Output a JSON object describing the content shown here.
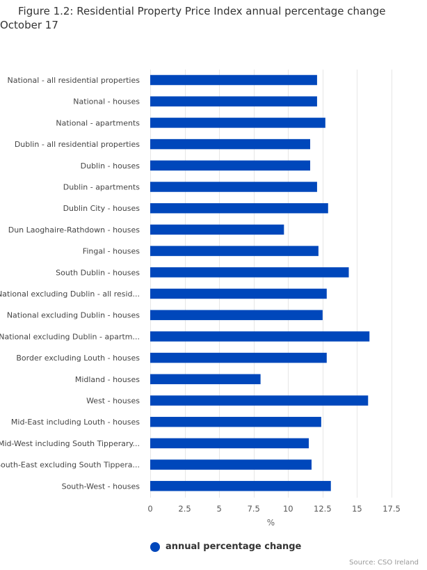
{
  "chart_data": {
    "type": "bar",
    "orientation": "horizontal",
    "title": "Figure 1.2: Residential Property Price Index annual percentage change October 17",
    "xlabel": "%",
    "ylabel": "",
    "xlim": [
      0,
      17.5
    ],
    "ticks": [
      0,
      2.5,
      5,
      7.5,
      10,
      12.5,
      15,
      17.5
    ],
    "tick_labels": [
      "0",
      "2.5",
      "5",
      "7.5",
      "10",
      "12.5",
      "15",
      "17.5"
    ],
    "grid": true,
    "legend_position": "bottom",
    "categories": [
      "National - all residential properties",
      "National - houses",
      "National - apartments",
      "Dublin - all residential properties",
      "Dublin - houses",
      "Dublin - apartments",
      "Dublin City - houses",
      "Dun Laoghaire-Rathdown - houses",
      "Fingal - houses",
      "South Dublin - houses",
      "National excluding Dublin - all resid...",
      "National excluding Dublin - houses",
      "National excluding Dublin - apartm...",
      "Border excluding Louth - houses",
      "Midland - houses",
      "West - houses",
      "Mid-East including Louth - houses",
      "Mid-West including South Tipperary...",
      "South-East excluding South Tippera...",
      "South-West - houses"
    ],
    "series": [
      {
        "name": "annual percentage change",
        "color": "#0047bb",
        "values": [
          12.1,
          12.1,
          12.7,
          11.6,
          11.6,
          12.1,
          12.9,
          9.7,
          12.2,
          14.4,
          12.8,
          12.5,
          15.9,
          12.8,
          8.0,
          15.8,
          12.4,
          11.5,
          11.7,
          13.1
        ]
      }
    ],
    "source": "Source: CSO Ireland"
  }
}
